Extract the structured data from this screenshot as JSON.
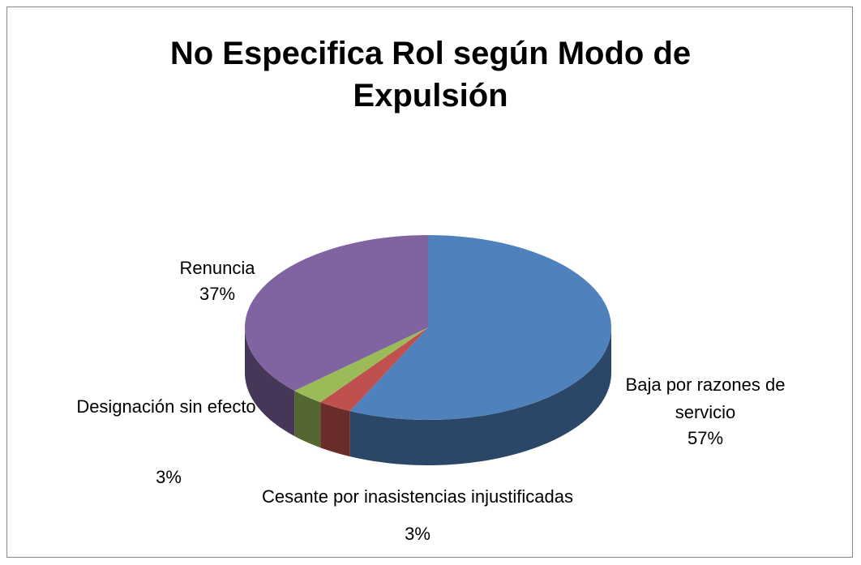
{
  "chart_data": {
    "type": "pie3d",
    "title": "No Especifica Rol según Modo de Expulsión",
    "categories": [
      "Baja por razones de servicio",
      "Cesante por inasistencias injustificadas",
      "Designación sin efecto",
      "Renuncia"
    ],
    "values": [
      57,
      3,
      3,
      37
    ],
    "value_labels": [
      "57%",
      "3%",
      "3%",
      "37%"
    ],
    "colors": [
      "#4f81bd",
      "#c0504d",
      "#9bbb59",
      "#8064a2"
    ]
  }
}
